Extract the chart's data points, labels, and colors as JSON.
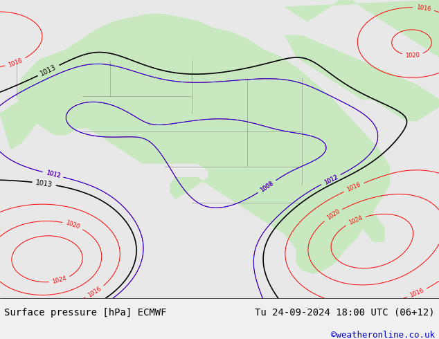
{
  "title_left": "Surface pressure [hPa] ECMWF",
  "title_right": "Tu 24-09-2024 18:00 UTC (06+12)",
  "credit": "©weatheronline.co.uk",
  "bg_map_color": "#d8ecd8",
  "land_color": "#c8e8c0",
  "sea_color": "#e8e8e8",
  "footer_bg": "#f0f0f0",
  "footer_text_color": "#000000",
  "credit_color": "#0000cc",
  "title_fontsize": 10,
  "credit_fontsize": 9,
  "figsize": [
    6.34,
    4.9
  ],
  "dpi": 100
}
